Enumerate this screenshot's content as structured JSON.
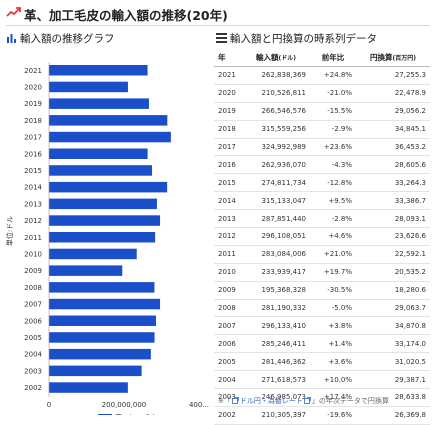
{
  "header": {
    "title": "革、加工毛皮の輸入額の推移(20年)"
  },
  "chart_section": {
    "title": "輸入額の推移グラフ"
  },
  "table_section": {
    "title": "輸入額と円換算の時系列データ"
  },
  "table": {
    "columns": [
      "年",
      "輸入額",
      "(ドル)",
      "前年比",
      "円換算",
      "(百万円)"
    ],
    "rows": [
      {
        "year": "2021",
        "amount": "262,838,369",
        "change": "+24.8%",
        "trend": "up",
        "yen": "27,255.3"
      },
      {
        "year": "2020",
        "amount": "210,526,811",
        "change": "-21.0%",
        "trend": "down",
        "yen": "22,478.9"
      },
      {
        "year": "2019",
        "amount": "266,546,576",
        "change": "-15.5%",
        "trend": "down",
        "yen": "29,056.2"
      },
      {
        "year": "2018",
        "amount": "315,559,256",
        "change": "-2.9%",
        "trend": "down",
        "yen": "34,845.1"
      },
      {
        "year": "2017",
        "amount": "324,992,989",
        "change": "+23.6%",
        "trend": "up",
        "yen": "36,453.2"
      },
      {
        "year": "2016",
        "amount": "262,936,070",
        "change": "-4.3%",
        "trend": "down",
        "yen": "28,605.6"
      },
      {
        "year": "2015",
        "amount": "274,811,734",
        "change": "-12.8%",
        "trend": "down",
        "yen": "33,264.3"
      },
      {
        "year": "2014",
        "amount": "315,133,047",
        "change": "+9.5%",
        "trend": "up",
        "yen": "33,386.7"
      },
      {
        "year": "2013",
        "amount": "287,851,440",
        "change": "-2.8%",
        "trend": "down",
        "yen": "28,093.1"
      },
      {
        "year": "2012",
        "amount": "296,108,051",
        "change": "+4.6%",
        "trend": "up",
        "yen": "23,626.6"
      },
      {
        "year": "2011",
        "amount": "283,084,006",
        "change": "+21.0%",
        "trend": "up",
        "yen": "22,592.1"
      },
      {
        "year": "2010",
        "amount": "233,939,417",
        "change": "+19.7%",
        "trend": "up",
        "yen": "20,535.2"
      },
      {
        "year": "2009",
        "amount": "195,368,328",
        "change": "-30.5%",
        "trend": "down",
        "yen": "18,280.6"
      },
      {
        "year": "2008",
        "amount": "281,190,332",
        "change": "-5.0%",
        "trend": "down",
        "yen": "29,063.7"
      },
      {
        "year": "2007",
        "amount": "296,133,410",
        "change": "+3.8%",
        "trend": "up",
        "yen": "34,870.8"
      },
      {
        "year": "2006",
        "amount": "285,246,411",
        "change": "+1.4%",
        "trend": "up",
        "yen": "33,174.0"
      },
      {
        "year": "2005",
        "amount": "281,446,362",
        "change": "+3.6%",
        "trend": "up",
        "yen": "31,020.5"
      },
      {
        "year": "2004",
        "amount": "271,618,573",
        "change": "+10.0%",
        "trend": "up",
        "yen": "29,387.1"
      },
      {
        "year": "2003",
        "amount": "246,985,073",
        "change": "+17.4%",
        "trend": "up",
        "yen": "28,633.8"
      },
      {
        "year": "2002",
        "amount": "210,305,397",
        "change": "-19.6%",
        "trend": "down",
        "yen": "26,369.8"
      }
    ]
  },
  "footnote": {
    "prefix": "※「",
    "link": "ドル円・為替レート",
    "suffix": "」の年次データで円換算"
  },
  "colors": {
    "bar": "#1a4fc9",
    "positive": "#3aa53a",
    "negative": "#e03c3c",
    "link": "#2a66c9",
    "accent": "#e0383e"
  },
  "chart_data": {
    "type": "bar",
    "orientation": "horizontal",
    "categories": [
      "2021",
      "2020",
      "2019",
      "2018",
      "2017",
      "2016",
      "2015",
      "2014",
      "2013",
      "2012",
      "2011",
      "2010",
      "2009",
      "2008",
      "2007",
      "2006",
      "2005",
      "2004",
      "2003",
      "2002"
    ],
    "series": [
      {
        "name": "革、加工毛皮",
        "values": [
          262838369,
          210526811,
          266546576,
          315559256,
          324992989,
          262936070,
          274811734,
          315133047,
          287851440,
          296108051,
          283084006,
          233939417,
          195368328,
          281190332,
          296133410,
          285246411,
          281446362,
          271618573,
          246985073,
          210305397
        ]
      }
    ],
    "xlim": [
      0,
      400000000
    ],
    "x_ticks": [
      "0",
      "200,000,000",
      "400..."
    ],
    "ylabel": "単位:ドル",
    "legend": "bottom",
    "grid": false
  }
}
